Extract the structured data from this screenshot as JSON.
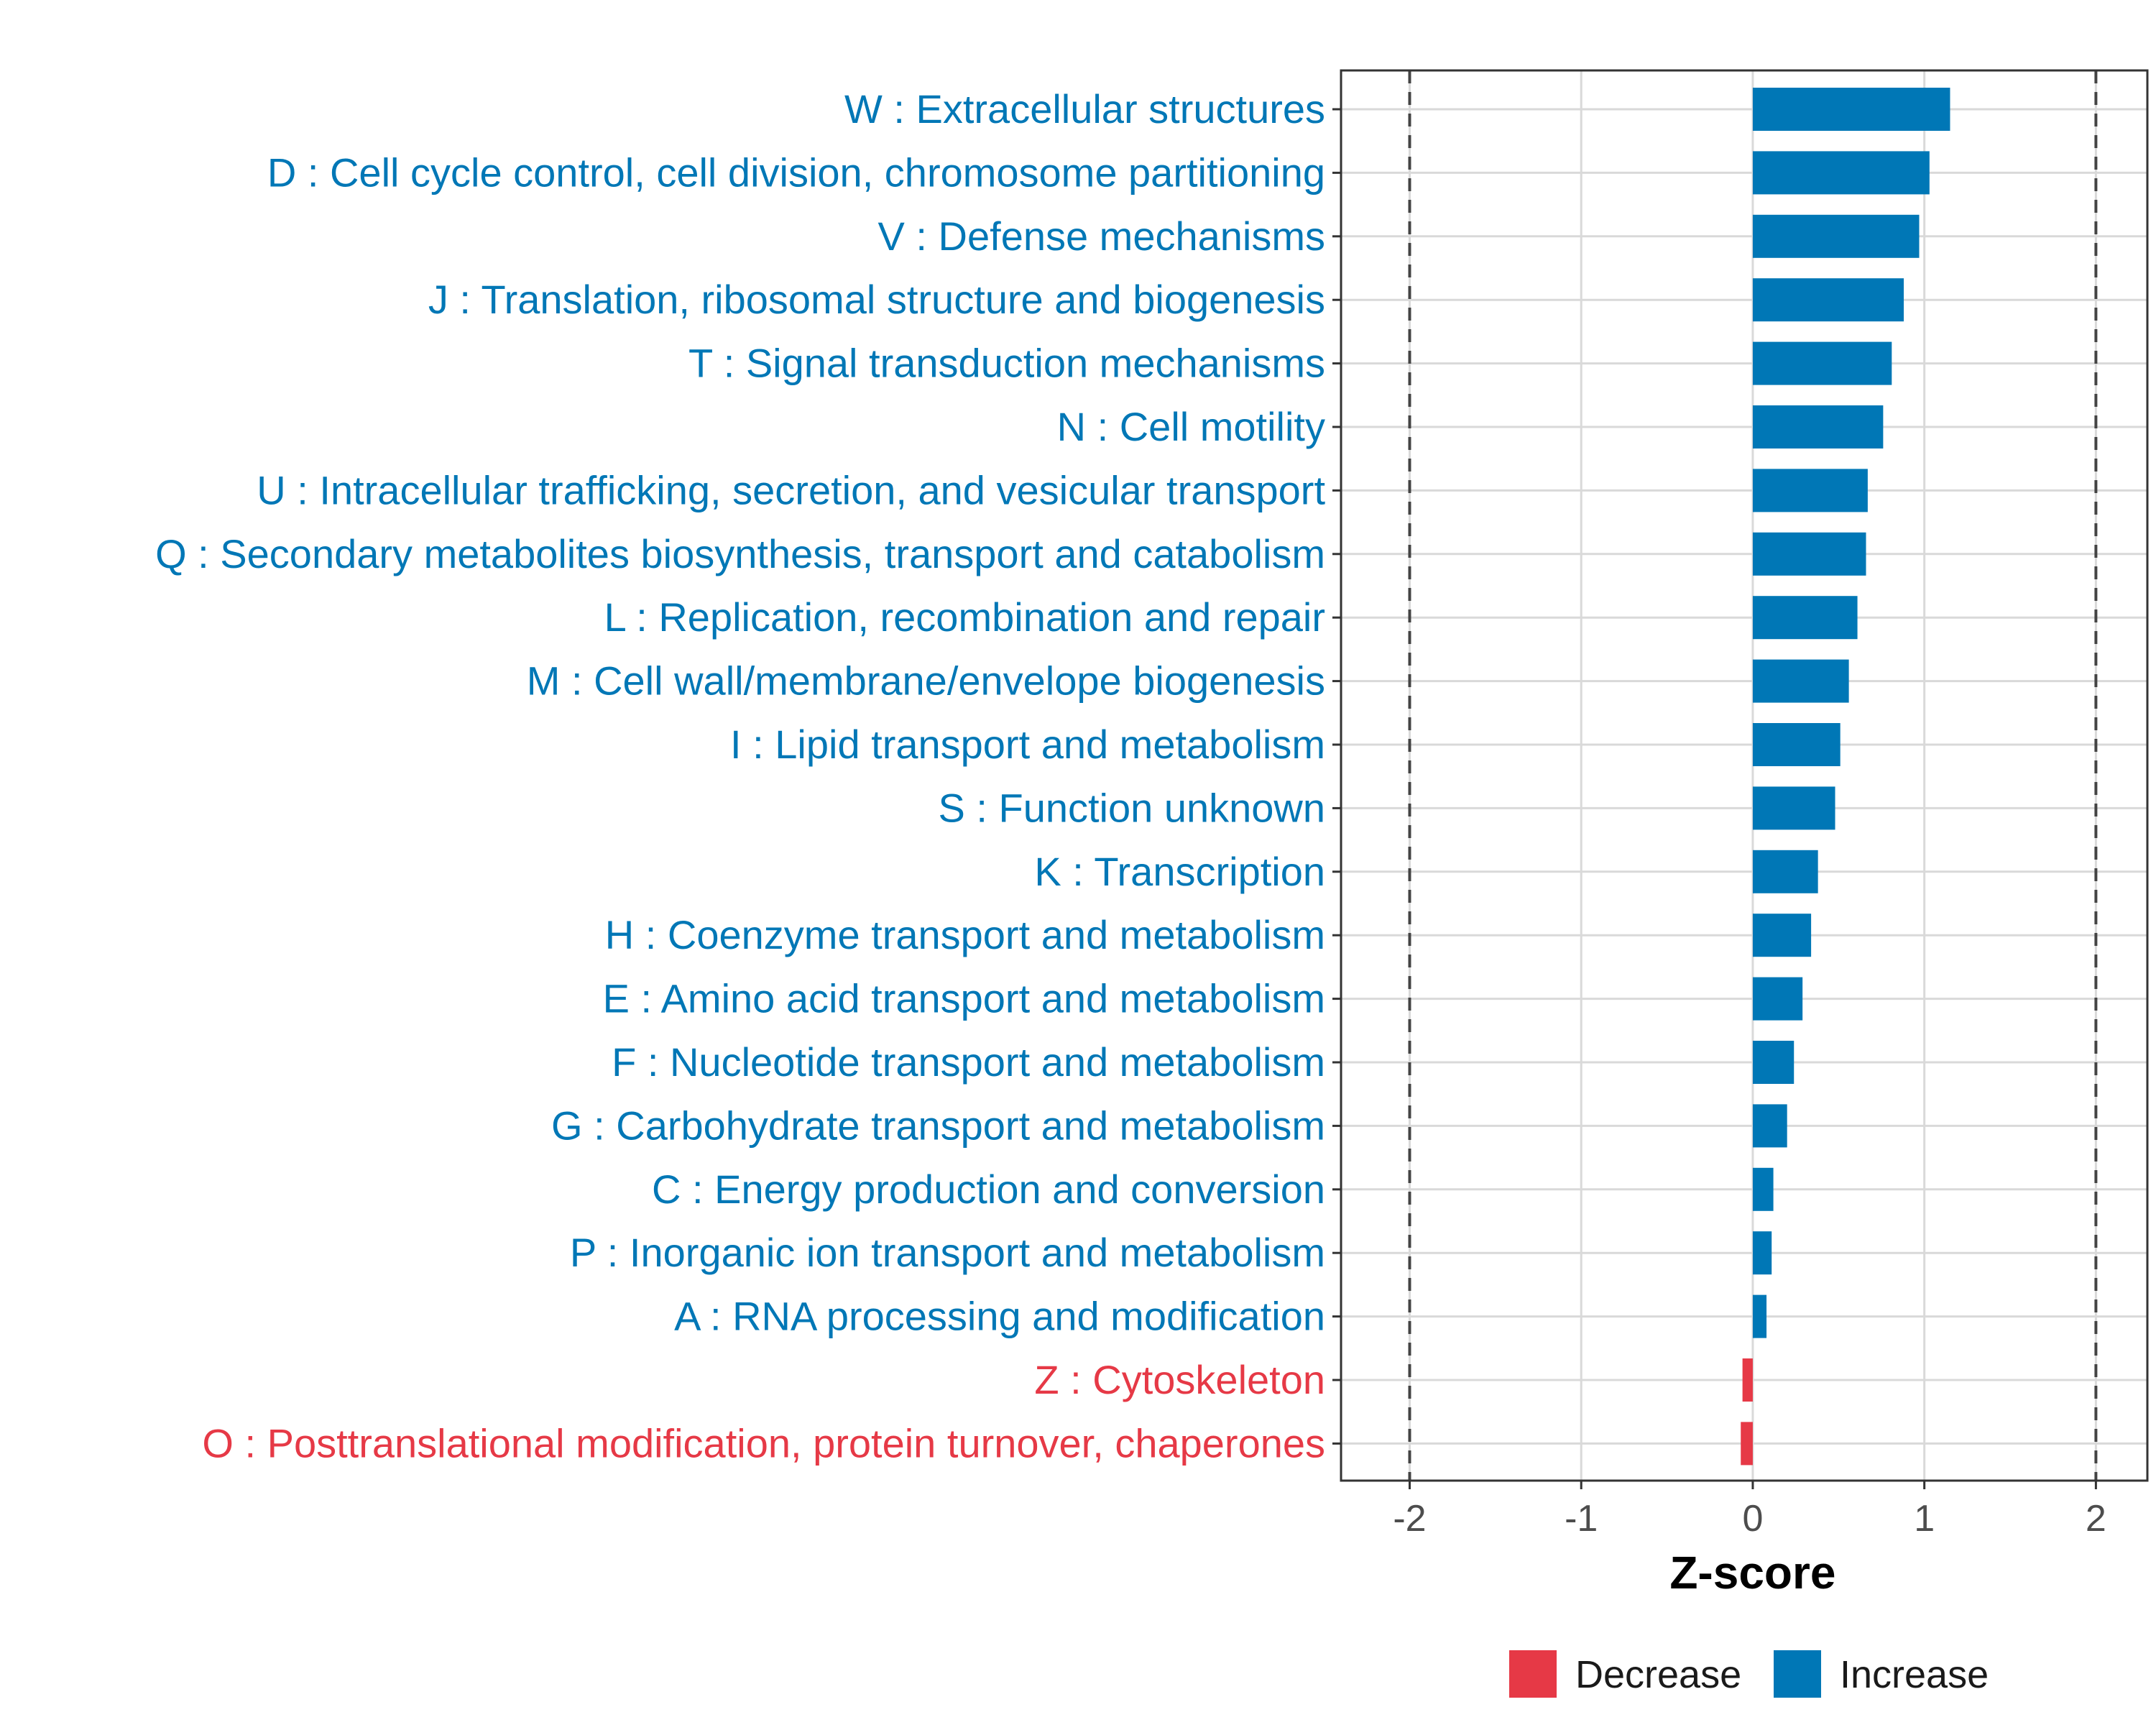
{
  "chart_data": {
    "type": "bar",
    "orientation": "horizontal",
    "xlabel": "Z-score",
    "ylabel": "",
    "xlim": [
      -2.4,
      2.3
    ],
    "xticks": [
      -2,
      -1,
      0,
      1,
      2
    ],
    "xtick_labels": [
      "-2",
      "-1",
      "0",
      "1",
      "2"
    ],
    "reference_lines": [
      -2,
      2
    ],
    "grid": true,
    "legend_position": "bottom",
    "colors": {
      "Decrease": "#e63946",
      "Increase": "#0077b6"
    },
    "categories": [
      "W : Extracellular structures",
      "D : Cell cycle control, cell division, chromosome partitioning",
      "V : Defense mechanisms",
      "J : Translation, ribosomal structure and biogenesis",
      "T : Signal transduction mechanisms",
      "N : Cell motility",
      "U : Intracellular trafficking, secretion, and vesicular transport",
      "Q : Secondary metabolites biosynthesis, transport and catabolism",
      "L : Replication, recombination and repair",
      "M : Cell wall/membrane/envelope biogenesis",
      "I : Lipid transport and metabolism",
      "S : Function unknown",
      "K : Transcription",
      "H : Coenzyme transport and metabolism",
      "E : Amino acid transport and metabolism",
      "F : Nucleotide transport and metabolism",
      "G : Carbohydrate transport and metabolism",
      "C : Energy production and conversion",
      "P : Inorganic ion transport and metabolism",
      "A : RNA processing and modification",
      "Z : Cytoskeleton",
      "O : Posttranslational modification, protein turnover, chaperones"
    ],
    "values": [
      1.15,
      1.03,
      0.97,
      0.88,
      0.81,
      0.76,
      0.67,
      0.66,
      0.61,
      0.56,
      0.51,
      0.48,
      0.38,
      0.34,
      0.29,
      0.24,
      0.2,
      0.12,
      0.11,
      0.08,
      -0.06,
      -0.07
    ],
    "groups": [
      "Increase",
      "Increase",
      "Increase",
      "Increase",
      "Increase",
      "Increase",
      "Increase",
      "Increase",
      "Increase",
      "Increase",
      "Increase",
      "Increase",
      "Increase",
      "Increase",
      "Increase",
      "Increase",
      "Increase",
      "Increase",
      "Increase",
      "Increase",
      "Decrease",
      "Decrease"
    ],
    "legend": [
      "Decrease",
      "Increase"
    ]
  }
}
